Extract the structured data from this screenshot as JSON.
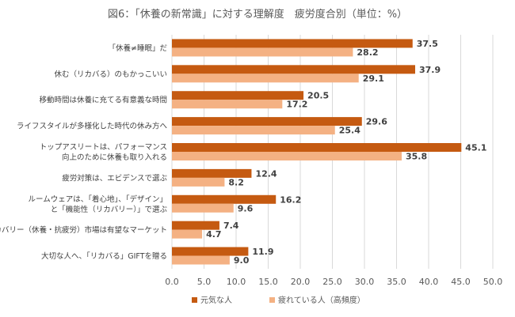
{
  "chart_data": {
    "type": "bar",
    "orientation": "horizontal",
    "title": "図6：「休養の新常識」に対する理解度　疲労度合別（単位：%）",
    "categories": [
      [
        "「休養≠睡眠」だ"
      ],
      [
        "休む（リカバる）のもかっこいい"
      ],
      [
        "移動時間は休養に充てる有意義な時間"
      ],
      [
        "ライフスタイルが多様化した時代の休み方へ"
      ],
      [
        "トップアスリートは、パフォーマンス",
        "向上のために休養も取り入れる"
      ],
      [
        "疲労対策は、エビデンスで選ぶ"
      ],
      [
        "ルームウェアは、「着心地」、「デザイン」",
        "と「機能性（リカバリー）」で選ぶ"
      ],
      [
        "リカバリー（休養・抗疲労）市場は有望なマーケット"
      ],
      [
        "大切な人へ、「リカバる」GIFTを贈る"
      ]
    ],
    "series": [
      {
        "name": "元気な人",
        "color": "#c55a11",
        "values": [
          37.5,
          37.9,
          20.5,
          29.6,
          45.1,
          12.4,
          16.2,
          7.4,
          11.9
        ]
      },
      {
        "name": "疲れている人（高頻度）",
        "color": "#f4b183",
        "values": [
          28.2,
          29.1,
          17.2,
          25.4,
          35.8,
          8.2,
          9.6,
          4.7,
          9.0
        ]
      }
    ],
    "xlim": [
      0,
      50
    ],
    "xticks": [
      "0.0",
      "5.0",
      "10.0",
      "15.0",
      "20.0",
      "25.0",
      "30.0",
      "35.0",
      "40.0",
      "45.0",
      "50.0"
    ],
    "grid": true,
    "legend_position": "bottom"
  }
}
